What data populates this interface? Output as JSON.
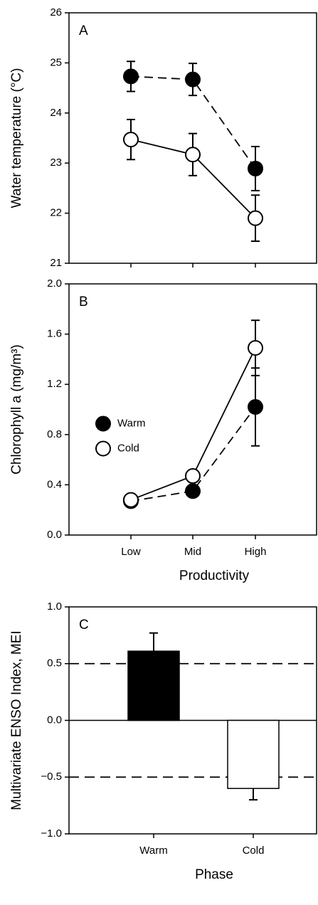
{
  "chart_data": [
    {
      "type": "line",
      "title": "A",
      "ylabel": "Water temperature (°C)",
      "ylim": [
        21,
        26
      ],
      "yticks": [
        21,
        22,
        23,
        24,
        25,
        26
      ],
      "series": [
        {
          "name": "Warm",
          "color": "#000000",
          "linestyle": "dashed",
          "values": [
            24.73,
            24.67,
            22.89
          ],
          "errors": [
            0.3,
            0.32,
            0.44
          ]
        },
        {
          "name": "Cold",
          "color": "#ffffff",
          "linestyle": "solid",
          "values": [
            23.47,
            23.17,
            21.9
          ],
          "errors": [
            0.4,
            0.42,
            0.46
          ]
        }
      ]
    },
    {
      "type": "line",
      "title": "B",
      "ylabel": "Chlorophyll a (mg/m³)",
      "xlabel": "Productivity",
      "categories": [
        "Low",
        "Mid",
        "High"
      ],
      "ylim": [
        0,
        2
      ],
      "yticks": [
        {
          "value": 0,
          "label": "0.0"
        },
        0.4,
        0.8,
        1.2,
        1.6,
        {
          "value": 2,
          "label": "2.0"
        }
      ],
      "legend": "center left",
      "series": [
        {
          "name": "Warm",
          "color": "#000000",
          "linestyle": "dashed",
          "values": [
            0.27,
            0.35,
            1.02
          ],
          "errors": [
            0.02,
            0.03,
            0.31
          ]
        },
        {
          "name": "Cold",
          "color": "#ffffff",
          "linestyle": "solid",
          "values": [
            0.28,
            0.47,
            1.49
          ],
          "errors": [
            0.03,
            0.04,
            0.22
          ]
        }
      ]
    },
    {
      "type": "bar",
      "title": "C",
      "ylabel": "Multivariate ENSO Index, MEI",
      "xlabel": "Phase",
      "categories": [
        "Warm",
        "Cold"
      ],
      "values": [
        0.61,
        -0.6
      ],
      "errors": [
        0.16,
        0.1
      ],
      "colors": [
        "#000000",
        "#ffffff"
      ],
      "hlines": [
        0.5,
        -0.5
      ],
      "ylim": [
        -1,
        1
      ],
      "yticks": [
        {
          "value": -1,
          "label": "−1.0"
        },
        {
          "value": -0.5,
          "label": "−0.5"
        },
        {
          "value": 0,
          "label": "0.0"
        },
        0.5,
        {
          "value": 1,
          "label": "1.0"
        }
      ]
    }
  ]
}
